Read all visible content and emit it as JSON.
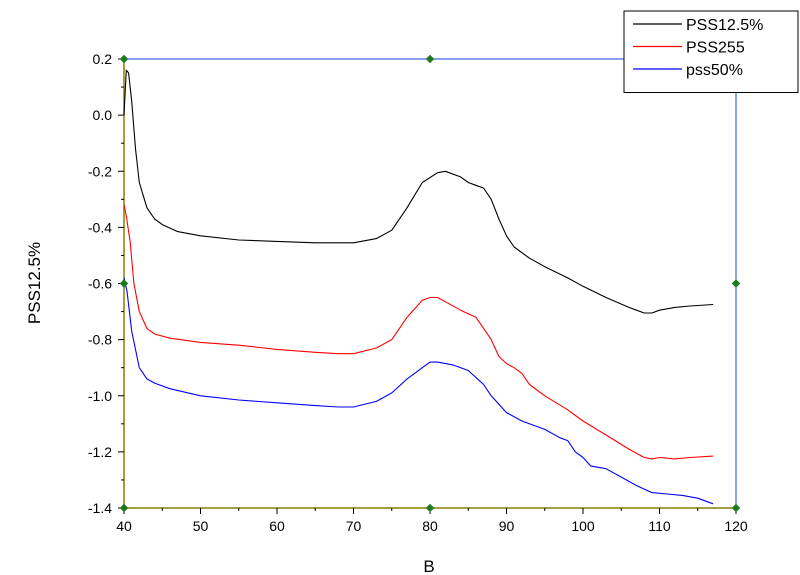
{
  "chart_data": {
    "type": "line",
    "title": "",
    "xlabel": "B",
    "ylabel": "PSS12.5%",
    "xlim": [
      40,
      120
    ],
    "ylim": [
      -1.4,
      0.2
    ],
    "x_ticks": [
      40,
      50,
      60,
      70,
      80,
      90,
      100,
      110,
      120
    ],
    "y_ticks": [
      0.2,
      0.0,
      -0.2,
      -0.4,
      -0.6,
      -0.8,
      -1.0,
      -1.2,
      -1.4
    ],
    "x_tick_labels": [
      "40",
      "50",
      "60",
      "70",
      "80",
      "90",
      "100",
      "110",
      "120"
    ],
    "y_tick_labels": [
      "0.2",
      "0.0",
      "-0.2",
      "-0.4",
      "-0.6",
      "-0.8",
      "-1.0",
      "-1.2",
      "-1.4"
    ],
    "grid": false,
    "legend_position": "top-right",
    "axis_colors": {
      "left_bottom": "#8b7d00",
      "frame": "#4169e1",
      "handles": "#1f7a1f"
    },
    "series": [
      {
        "name": "PSS12.5%",
        "color": "#000000",
        "points": [
          [
            40.0,
            0.0
          ],
          [
            40.3,
            0.16
          ],
          [
            40.6,
            0.15
          ],
          [
            41,
            0.05
          ],
          [
            41.5,
            -0.12
          ],
          [
            42,
            -0.24
          ],
          [
            43,
            -0.33
          ],
          [
            44,
            -0.37
          ],
          [
            45,
            -0.39
          ],
          [
            47,
            -0.415
          ],
          [
            50,
            -0.43
          ],
          [
            55,
            -0.445
          ],
          [
            60,
            -0.45
          ],
          [
            65,
            -0.455
          ],
          [
            70,
            -0.455
          ],
          [
            73,
            -0.44
          ],
          [
            75,
            -0.41
          ],
          [
            77,
            -0.33
          ],
          [
            79,
            -0.24
          ],
          [
            81,
            -0.205
          ],
          [
            82,
            -0.2
          ],
          [
            84,
            -0.22
          ],
          [
            85,
            -0.24
          ],
          [
            86,
            -0.25
          ],
          [
            87,
            -0.26
          ],
          [
            88,
            -0.3
          ],
          [
            89,
            -0.37
          ],
          [
            90,
            -0.43
          ],
          [
            91,
            -0.47
          ],
          [
            93,
            -0.51
          ],
          [
            95,
            -0.54
          ],
          [
            98,
            -0.58
          ],
          [
            100,
            -0.61
          ],
          [
            103,
            -0.65
          ],
          [
            106,
            -0.685
          ],
          [
            108,
            -0.705
          ],
          [
            109,
            -0.705
          ],
          [
            110,
            -0.695
          ],
          [
            112,
            -0.685
          ],
          [
            114,
            -0.68
          ],
          [
            117,
            -0.675
          ]
        ]
      },
      {
        "name": "PSS255",
        "color": "#ff0000",
        "points": [
          [
            40.0,
            -0.32
          ],
          [
            40.3,
            -0.36
          ],
          [
            40.8,
            -0.45
          ],
          [
            41.3,
            -0.6
          ],
          [
            42,
            -0.7
          ],
          [
            43,
            -0.76
          ],
          [
            44,
            -0.78
          ],
          [
            46,
            -0.795
          ],
          [
            50,
            -0.81
          ],
          [
            55,
            -0.82
          ],
          [
            60,
            -0.835
          ],
          [
            65,
            -0.845
          ],
          [
            68,
            -0.85
          ],
          [
            70,
            -0.85
          ],
          [
            73,
            -0.83
          ],
          [
            75,
            -0.8
          ],
          [
            77,
            -0.72
          ],
          [
            79,
            -0.66
          ],
          [
            80,
            -0.65
          ],
          [
            81,
            -0.65
          ],
          [
            82,
            -0.665
          ],
          [
            84,
            -0.695
          ],
          [
            86,
            -0.72
          ],
          [
            87,
            -0.76
          ],
          [
            88,
            -0.8
          ],
          [
            89,
            -0.86
          ],
          [
            90,
            -0.885
          ],
          [
            91,
            -0.9
          ],
          [
            92,
            -0.92
          ],
          [
            93,
            -0.96
          ],
          [
            95,
            -1.0
          ],
          [
            98,
            -1.05
          ],
          [
            100,
            -1.09
          ],
          [
            103,
            -1.14
          ],
          [
            106,
            -1.19
          ],
          [
            108,
            -1.22
          ],
          [
            109,
            -1.225
          ],
          [
            110,
            -1.22
          ],
          [
            112,
            -1.225
          ],
          [
            114,
            -1.22
          ],
          [
            117,
            -1.215
          ]
        ]
      },
      {
        "name": "pss50%",
        "color": "#0000ff",
        "points": [
          [
            40.0,
            -0.58
          ],
          [
            40.4,
            -0.63
          ],
          [
            41,
            -0.77
          ],
          [
            42,
            -0.9
          ],
          [
            43,
            -0.94
          ],
          [
            44,
            -0.955
          ],
          [
            46,
            -0.975
          ],
          [
            50,
            -1.0
          ],
          [
            55,
            -1.015
          ],
          [
            60,
            -1.025
          ],
          [
            65,
            -1.035
          ],
          [
            68,
            -1.04
          ],
          [
            70,
            -1.04
          ],
          [
            73,
            -1.02
          ],
          [
            75,
            -0.99
          ],
          [
            77,
            -0.94
          ],
          [
            79,
            -0.9
          ],
          [
            80,
            -0.88
          ],
          [
            81,
            -0.88
          ],
          [
            83,
            -0.89
          ],
          [
            85,
            -0.91
          ],
          [
            87,
            -0.96
          ],
          [
            88,
            -1.0
          ],
          [
            90,
            -1.06
          ],
          [
            92,
            -1.09
          ],
          [
            95,
            -1.12
          ],
          [
            97,
            -1.15
          ],
          [
            98,
            -1.16
          ],
          [
            99,
            -1.2
          ],
          [
            100,
            -1.22
          ],
          [
            101,
            -1.25
          ],
          [
            103,
            -1.26
          ],
          [
            105,
            -1.29
          ],
          [
            107,
            -1.32
          ],
          [
            109,
            -1.345
          ],
          [
            111,
            -1.35
          ],
          [
            113,
            -1.355
          ],
          [
            115,
            -1.365
          ],
          [
            117,
            -1.385
          ]
        ]
      }
    ]
  }
}
